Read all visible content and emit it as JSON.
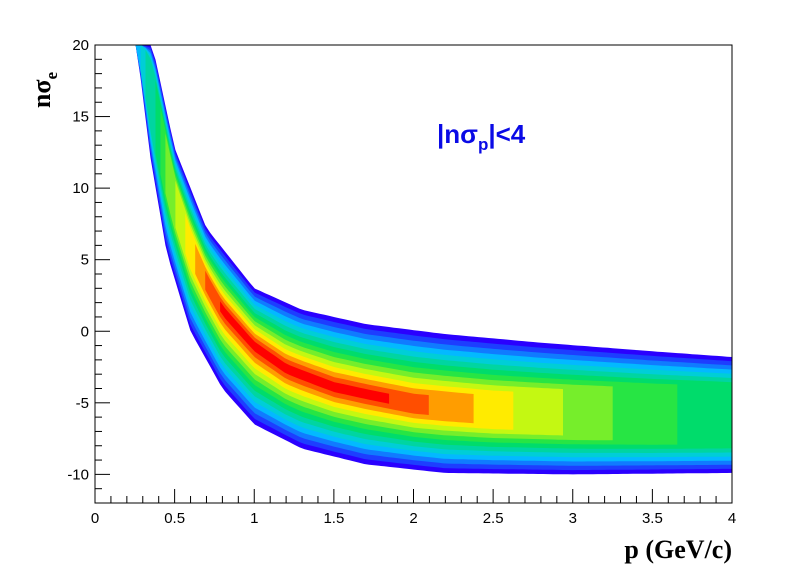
{
  "chart_data": {
    "type": "heatmap",
    "title": "",
    "xlabel": "p (GeV/c)",
    "ylabel": {
      "main": "nσ",
      "sub": "e"
    },
    "xlim": [
      0,
      4
    ],
    "ylim": [
      -12,
      20
    ],
    "x_ticks": [
      0,
      0.5,
      1,
      1.5,
      2,
      2.5,
      3,
      3.5,
      4
    ],
    "x_tick_labels": [
      "0",
      "0.5",
      "1",
      "1.5",
      "2",
      "2.5",
      "3",
      "3.5",
      "4"
    ],
    "y_ticks": [
      -10,
      -5,
      0,
      5,
      10,
      15,
      20
    ],
    "y_tick_labels": [
      "-10",
      "-5",
      "0",
      "5",
      "10",
      "15",
      "20"
    ],
    "annotation": {
      "prefix": "|nσ",
      "sub": "p",
      "suffix": "|<4",
      "color": "#0a0ae6"
    },
    "band_center": [
      {
        "x": 0.3,
        "y": 20.0
      },
      {
        "x": 0.4,
        "y": 14.5
      },
      {
        "x": 0.5,
        "y": 9.5
      },
      {
        "x": 0.6,
        "y": 6.0
      },
      {
        "x": 0.7,
        "y": 3.5
      },
      {
        "x": 0.8,
        "y": 1.5
      },
      {
        "x": 1.0,
        "y": -1.0
      },
      {
        "x": 1.2,
        "y": -2.6
      },
      {
        "x": 1.5,
        "y": -3.9
      },
      {
        "x": 2.0,
        "y": -5.1
      },
      {
        "x": 2.5,
        "y": -5.6
      },
      {
        "x": 3.0,
        "y": -5.8
      },
      {
        "x": 3.5,
        "y": -5.9
      },
      {
        "x": 4.0,
        "y": -5.9
      }
    ],
    "band_upper_edge": [
      {
        "x": 0.36,
        "y": 20.0
      },
      {
        "x": 0.5,
        "y": 12.8
      },
      {
        "x": 0.7,
        "y": 7.2
      },
      {
        "x": 1.0,
        "y": 3.0
      },
      {
        "x": 1.3,
        "y": 1.5
      },
      {
        "x": 1.7,
        "y": 0.5
      },
      {
        "x": 2.2,
        "y": -0.2
      },
      {
        "x": 2.8,
        "y": -0.8
      },
      {
        "x": 3.5,
        "y": -1.4
      },
      {
        "x": 4.0,
        "y": -1.8
      }
    ],
    "band_lower_edge": [
      {
        "x": 0.26,
        "y": 20.0
      },
      {
        "x": 0.35,
        "y": 12.0
      },
      {
        "x": 0.45,
        "y": 5.5
      },
      {
        "x": 0.6,
        "y": 0.0
      },
      {
        "x": 0.8,
        "y": -4.0
      },
      {
        "x": 1.0,
        "y": -6.5
      },
      {
        "x": 1.3,
        "y": -8.2
      },
      {
        "x": 1.7,
        "y": -9.3
      },
      {
        "x": 2.2,
        "y": -9.9
      },
      {
        "x": 3.0,
        "y": -10.0
      },
      {
        "x": 4.0,
        "y": -9.9
      }
    ],
    "intensity_peak": {
      "x": 1.2,
      "y": -2.6
    },
    "colors": {
      "low": "#2a00ff",
      "mid_low": "#00c8ff",
      "mid": "#00e050",
      "mid_high": "#ffff00",
      "high": "#ff0000"
    }
  }
}
